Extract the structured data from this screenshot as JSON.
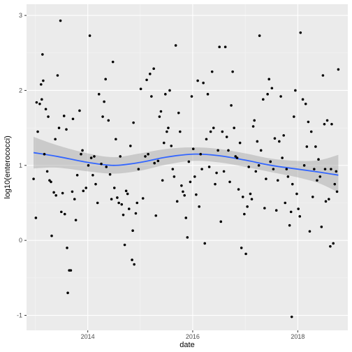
{
  "chart_data": {
    "type": "scatter",
    "xlabel": "date",
    "ylabel": "log10(enterococci)",
    "x_is_date": true,
    "xlim": [
      "2012-11-01",
      "2018-12-15"
    ],
    "ylim": [
      -1.2,
      3.15
    ],
    "x_ticks": [
      {
        "value": "2014-01-01",
        "label": "2014"
      },
      {
        "value": "2016-01-01",
        "label": "2016"
      },
      {
        "value": "2018-01-01",
        "label": "2018"
      }
    ],
    "y_ticks": [
      {
        "value": -1,
        "label": "-1"
      },
      {
        "value": 0,
        "label": "0"
      },
      {
        "value": 1,
        "label": "1"
      },
      {
        "value": 2,
        "label": "2"
      },
      {
        "value": 3,
        "label": "3"
      }
    ],
    "grid": true,
    "colors": {
      "panel_background": "#EBEBEB",
      "grid_major": "#FFFFFF",
      "grid_minor": "#F5F5F5",
      "points": "#000000",
      "smooth_line": "#3366FF",
      "confidence_band": "#999999"
    },
    "series": [
      {
        "type": "scatter",
        "points": [
          [
            "2012-12-20",
            0.82
          ],
          [
            "2013-01-05",
            0.3
          ],
          [
            "2013-01-10",
            1.84
          ],
          [
            "2013-01-18",
            1.45
          ],
          [
            "2013-02-01",
            1.82
          ],
          [
            "2013-02-10",
            2.08
          ],
          [
            "2013-02-15",
            1.88
          ],
          [
            "2013-02-20",
            2.48
          ],
          [
            "2013-02-25",
            2.13
          ],
          [
            "2013-03-05",
            1.15
          ],
          [
            "2013-03-15",
            1.75
          ],
          [
            "2013-03-25",
            0.92
          ],
          [
            "2013-04-01",
            1.65
          ],
          [
            "2013-04-10",
            0.8
          ],
          [
            "2013-04-20",
            0.78
          ],
          [
            "2013-04-25",
            0.06
          ],
          [
            "2013-05-10",
            0.64
          ],
          [
            "2013-05-20",
            1.35
          ],
          [
            "2013-05-25",
            0.6
          ],
          [
            "2013-06-05",
            2.2
          ],
          [
            "2013-06-15",
            1.5
          ],
          [
            "2013-06-25",
            2.93
          ],
          [
            "2013-07-01",
            0.38
          ],
          [
            "2013-07-10",
            0.63
          ],
          [
            "2013-07-20",
            1.66
          ],
          [
            "2013-07-25",
            0.35
          ],
          [
            "2013-08-05",
            1.48
          ],
          [
            "2013-08-10",
            -0.1
          ],
          [
            "2013-08-15",
            -0.7
          ],
          [
            "2013-08-25",
            -0.4
          ],
          [
            "2013-09-05",
            -0.4
          ],
          [
            "2013-09-15",
            0.65
          ],
          [
            "2013-09-20",
            1.62
          ],
          [
            "2013-10-01",
            0.55
          ],
          [
            "2013-10-10",
            0.27
          ],
          [
            "2013-10-20",
            0.87
          ],
          [
            "2013-11-05",
            1.73
          ],
          [
            "2013-11-15",
            1.15
          ],
          [
            "2013-11-25",
            1.2
          ],
          [
            "2013-12-01",
            0.66
          ],
          [
            "2013-12-20",
            0.7
          ],
          [
            "2014-01-05",
            1.0
          ],
          [
            "2014-01-15",
            2.73
          ],
          [
            "2014-01-25",
            1.1
          ],
          [
            "2014-02-05",
            0.87
          ],
          [
            "2014-02-15",
            1.12
          ],
          [
            "2014-02-25",
            0.75
          ],
          [
            "2014-03-10",
            0.5
          ],
          [
            "2014-03-20",
            1.95
          ],
          [
            "2014-04-05",
            1.02
          ],
          [
            "2014-04-15",
            1.65
          ],
          [
            "2014-04-25",
            1.85
          ],
          [
            "2014-05-05",
            2.15
          ],
          [
            "2014-05-10",
            0.98
          ],
          [
            "2014-05-25",
            1.6
          ],
          [
            "2014-06-05",
            0.88
          ],
          [
            "2014-06-15",
            0.55
          ],
          [
            "2014-06-25",
            2.38
          ],
          [
            "2014-07-05",
            0.7
          ],
          [
            "2014-07-15",
            1.35
          ],
          [
            "2014-07-25",
            0.57
          ],
          [
            "2014-08-05",
            0.5
          ],
          [
            "2014-08-15",
            1.12
          ],
          [
            "2014-08-25",
            0.48
          ],
          [
            "2014-09-05",
            0.34
          ],
          [
            "2014-09-15",
            -0.06
          ],
          [
            "2014-09-25",
            0.66
          ],
          [
            "2014-10-05",
            0.62
          ],
          [
            "2014-10-15",
            0.42
          ],
          [
            "2014-10-25",
            1.26
          ],
          [
            "2014-11-05",
            -0.26
          ],
          [
            "2014-11-10",
            0.13
          ],
          [
            "2014-11-15",
            1.57
          ],
          [
            "2014-11-20",
            -0.32
          ],
          [
            "2014-12-01",
            0.36
          ],
          [
            "2014-12-10",
            0.5
          ],
          [
            "2014-12-20",
            0.95
          ],
          [
            "2015-01-05",
            2.02
          ],
          [
            "2015-01-20",
            0.56
          ],
          [
            "2015-02-05",
            1.12
          ],
          [
            "2015-02-15",
            2.14
          ],
          [
            "2015-02-25",
            1.15
          ],
          [
            "2015-03-10",
            2.22
          ],
          [
            "2015-03-20",
            1.92
          ],
          [
            "2015-04-05",
            2.29
          ],
          [
            "2015-04-10",
            1.03
          ],
          [
            "2015-04-20",
            0.33
          ],
          [
            "2015-05-05",
            1.06
          ],
          [
            "2015-05-15",
            1.65
          ],
          [
            "2015-05-25",
            1.72
          ],
          [
            "2015-06-05",
            0.8
          ],
          [
            "2015-06-15",
            1.3
          ],
          [
            "2015-06-25",
            1.95
          ],
          [
            "2015-07-05",
            1.45
          ],
          [
            "2015-07-15",
            1.5
          ],
          [
            "2015-07-25",
            2.0
          ],
          [
            "2015-08-05",
            1.26
          ],
          [
            "2015-08-15",
            0.95
          ],
          [
            "2015-08-25",
            0.85
          ],
          [
            "2015-09-05",
            2.6
          ],
          [
            "2015-09-15",
            0.52
          ],
          [
            "2015-09-25",
            1.7
          ],
          [
            "2015-10-05",
            1.45
          ],
          [
            "2015-10-15",
            0.73
          ],
          [
            "2015-10-25",
            0.65
          ],
          [
            "2015-11-05",
            0.6
          ],
          [
            "2015-11-15",
            0.3
          ],
          [
            "2015-11-25",
            0.04
          ],
          [
            "2015-12-05",
            1.05
          ],
          [
            "2015-12-15",
            0.78
          ],
          [
            "2015-12-25",
            1.92
          ],
          [
            "2016-01-05",
            1.22
          ],
          [
            "2016-01-15",
            0.85
          ],
          [
            "2016-01-25",
            0.61
          ],
          [
            "2016-02-05",
            2.13
          ],
          [
            "2016-02-15",
            0.45
          ],
          [
            "2016-02-25",
            1.15
          ],
          [
            "2016-03-05",
            0.95
          ],
          [
            "2016-03-15",
            2.1
          ],
          [
            "2016-03-25",
            -0.04
          ],
          [
            "2016-04-05",
            1.35
          ],
          [
            "2016-04-15",
            1.95
          ],
          [
            "2016-04-25",
            0.98
          ],
          [
            "2016-05-05",
            1.45
          ],
          [
            "2016-05-15",
            2.25
          ],
          [
            "2016-05-25",
            1.5
          ],
          [
            "2016-06-05",
            0.75
          ],
          [
            "2016-06-15",
            0.9
          ],
          [
            "2016-06-25",
            1.2
          ],
          [
            "2016-07-05",
            2.58
          ],
          [
            "2016-07-15",
            0.25
          ],
          [
            "2016-07-25",
            1.45
          ],
          [
            "2016-08-05",
            0.92
          ],
          [
            "2016-08-15",
            2.58
          ],
          [
            "2016-08-25",
            1.38
          ],
          [
            "2016-09-05",
            1.2
          ],
          [
            "2016-09-15",
            0.78
          ],
          [
            "2016-09-25",
            1.8
          ],
          [
            "2016-10-05",
            2.25
          ],
          [
            "2016-10-15",
            1.5
          ],
          [
            "2016-10-25",
            1.12
          ],
          [
            "2016-11-05",
            1.1
          ],
          [
            "2016-11-15",
            0.68
          ],
          [
            "2016-11-25",
            1.3
          ],
          [
            "2016-12-05",
            -0.1
          ],
          [
            "2016-12-15",
            0.58
          ],
          [
            "2016-12-25",
            0.35
          ],
          [
            "2017-01-05",
            -0.18
          ],
          [
            "2017-01-15",
            0.45
          ],
          [
            "2017-01-25",
            0.98
          ],
          [
            "2017-02-05",
            0.62
          ],
          [
            "2017-02-15",
            0.55
          ],
          [
            "2017-02-25",
            1.52
          ],
          [
            "2017-03-05",
            1.6
          ],
          [
            "2017-03-15",
            0.92
          ],
          [
            "2017-03-25",
            1.32
          ],
          [
            "2017-04-05",
            1.0
          ],
          [
            "2017-04-10",
            2.73
          ],
          [
            "2017-04-20",
            1.2
          ],
          [
            "2017-05-05",
            1.88
          ],
          [
            "2017-05-15",
            0.43
          ],
          [
            "2017-05-25",
            0.82
          ],
          [
            "2017-06-05",
            1.95
          ],
          [
            "2017-06-15",
            2.15
          ],
          [
            "2017-06-25",
            1.05
          ],
          [
            "2017-07-05",
            2.03
          ],
          [
            "2017-07-15",
            0.95
          ],
          [
            "2017-07-25",
            1.36
          ],
          [
            "2017-08-05",
            0.4
          ],
          [
            "2017-08-15",
            0.8
          ],
          [
            "2017-08-25",
            1.32
          ],
          [
            "2017-09-05",
            1.92
          ],
          [
            "2017-09-15",
            1.1
          ],
          [
            "2017-09-25",
            1.4
          ],
          [
            "2017-10-05",
            0.5
          ],
          [
            "2017-10-15",
            0.95
          ],
          [
            "2017-10-25",
            0.85
          ],
          [
            "2017-11-05",
            0.2
          ],
          [
            "2017-11-15",
            0.38
          ],
          [
            "2017-11-20",
            -1.02
          ],
          [
            "2017-11-25",
            0.75
          ],
          [
            "2017-12-05",
            1.65
          ],
          [
            "2017-12-15",
            2.0
          ],
          [
            "2017-12-25",
            0.62
          ],
          [
            "2018-01-05",
            0.42
          ],
          [
            "2018-01-15",
            0.32
          ],
          [
            "2018-01-20",
            2.77
          ],
          [
            "2018-02-05",
            1.88
          ],
          [
            "2018-02-15",
            1.0
          ],
          [
            "2018-02-25",
            1.82
          ],
          [
            "2018-03-05",
            1.25
          ],
          [
            "2018-03-15",
            1.58
          ],
          [
            "2018-03-25",
            0.12
          ],
          [
            "2018-04-05",
            1.45
          ],
          [
            "2018-04-15",
            0.58
          ],
          [
            "2018-04-25",
            0.95
          ],
          [
            "2018-05-05",
            1.25
          ],
          [
            "2018-05-15",
            0.8
          ],
          [
            "2018-05-25",
            1.08
          ],
          [
            "2018-06-05",
            0.85
          ],
          [
            "2018-06-15",
            0.18
          ],
          [
            "2018-06-25",
            2.2
          ],
          [
            "2018-07-05",
            1.55
          ],
          [
            "2018-07-10",
            0.95
          ],
          [
            "2018-07-15",
            0.52
          ],
          [
            "2018-07-25",
            1.6
          ],
          [
            "2018-08-05",
            0.55
          ],
          [
            "2018-08-15",
            -0.08
          ],
          [
            "2018-08-20",
            0.95
          ],
          [
            "2018-08-25",
            1.55
          ],
          [
            "2018-09-05",
            -0.04
          ],
          [
            "2018-09-15",
            0.75
          ],
          [
            "2018-09-25",
            0.92
          ],
          [
            "2018-10-01",
            0.65
          ],
          [
            "2018-10-10",
            2.28
          ]
        ]
      },
      {
        "type": "smooth",
        "points": [
          [
            "2012-12-20",
            1.17
          ],
          [
            "2013-06-01",
            1.12
          ],
          [
            "2014-01-01",
            1.04
          ],
          [
            "2014-07-01",
            1.0
          ],
          [
            "2015-01-01",
            1.04
          ],
          [
            "2015-07-01",
            1.11
          ],
          [
            "2016-01-01",
            1.15
          ],
          [
            "2016-07-01",
            1.13
          ],
          [
            "2017-01-01",
            1.07
          ],
          [
            "2017-07-01",
            1.0
          ],
          [
            "2018-01-01",
            0.95
          ],
          [
            "2018-06-01",
            0.91
          ],
          [
            "2018-10-10",
            0.87
          ]
        ],
        "band": [
          [
            1.38,
            0.96
          ],
          [
            1.27,
            0.97
          ],
          [
            1.16,
            0.92
          ],
          [
            1.11,
            0.89
          ],
          [
            1.16,
            0.93
          ],
          [
            1.22,
            1.01
          ],
          [
            1.24,
            1.06
          ],
          [
            1.22,
            1.04
          ],
          [
            1.16,
            0.98
          ],
          [
            1.09,
            0.91
          ],
          [
            1.06,
            0.84
          ],
          [
            1.07,
            0.76
          ],
          [
            1.14,
            0.64
          ]
        ]
      }
    ]
  }
}
